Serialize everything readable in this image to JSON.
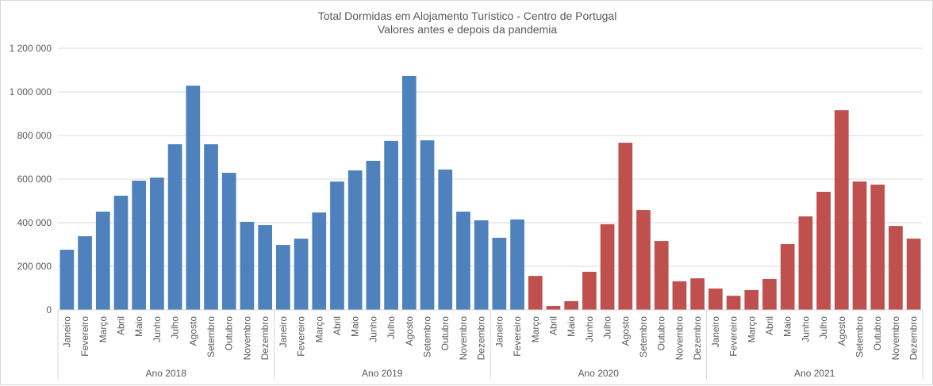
{
  "chart_data": {
    "type": "bar",
    "title": "Total Dormidas  em Alojamento  Turístico - Centro de Portugal",
    "subtitle": "Valores antes e depois da pandemia",
    "ylim": [
      0,
      1200000
    ],
    "yticks": [
      "0",
      "200 000",
      "400 000",
      "600 000",
      "800 000",
      "1 000 000",
      "1 200 000"
    ],
    "grid": true,
    "colors": {
      "before": "#4f81bd",
      "after": "#c0504d"
    },
    "months": [
      "Janeiro",
      "Fevereiro",
      "Março",
      "Abril",
      "Maio",
      "Junho",
      "Julho",
      "Agosto",
      "Setembro",
      "Outubro",
      "Novembro",
      "Dezembro"
    ],
    "groups": [
      {
        "label": "Ano 2018",
        "values": [
          276000,
          338000,
          451000,
          524000,
          593000,
          607000,
          760000,
          1029000,
          760000,
          629000,
          404000,
          389000
        ],
        "period": [
          "before",
          "before",
          "before",
          "before",
          "before",
          "before",
          "before",
          "before",
          "before",
          "before",
          "before",
          "before"
        ]
      },
      {
        "label": "Ano 2019",
        "values": [
          298000,
          327000,
          447000,
          589000,
          640000,
          684000,
          775000,
          1073000,
          778000,
          644000,
          451000,
          411000
        ],
        "period": [
          "before",
          "before",
          "before",
          "before",
          "before",
          "before",
          "before",
          "before",
          "before",
          "before",
          "before",
          "before"
        ]
      },
      {
        "label": "Ano 2020",
        "values": [
          331000,
          415000,
          156000,
          18000,
          40000,
          175000,
          393000,
          767000,
          458000,
          316000,
          131000,
          145000
        ],
        "period": [
          "before",
          "before",
          "after",
          "after",
          "after",
          "after",
          "after",
          "after",
          "after",
          "after",
          "after",
          "after"
        ]
      },
      {
        "label": "Ano 2021",
        "values": [
          98000,
          65000,
          91000,
          142000,
          302000,
          429000,
          542000,
          916000,
          589000,
          575000,
          385000,
          327000
        ],
        "period": [
          "after",
          "after",
          "after",
          "after",
          "after",
          "after",
          "after",
          "after",
          "after",
          "after",
          "after",
          "after"
        ]
      }
    ]
  }
}
